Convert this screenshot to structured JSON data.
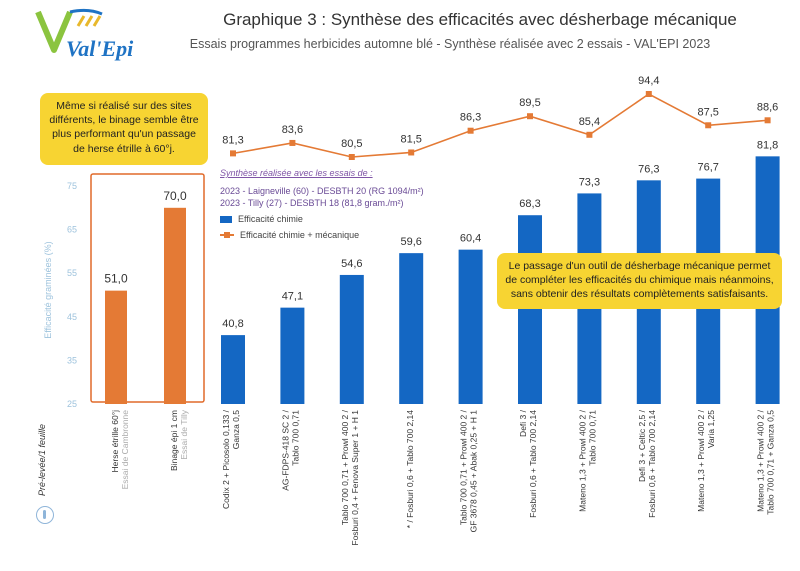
{
  "header": {
    "title": "Graphique 3 : Synthèse des efficacités avec désherbage mécanique",
    "subtitle": "Essais programmes herbicides automne blé - Synthèse réalisée avec 2 essais - VAL'EPI 2023",
    "logo_text": "Val'Epi"
  },
  "notes": {
    "left": "Même si réalisé sur des sites différents, le binage semble être plus performant qu'un passage de herse étrille à 60°j.",
    "right": "Le passage d'un outil de désherbage mécanique permet de compléter les efficacités du chimique mais néanmoins, sans obtenir des résultats complètements satisfaisants."
  },
  "legend": {
    "heading": "Synthèse réalisée avec les essais de :",
    "site1": "2023 - Laigneville (60) - DESBTH 20 (RG 1094/m²)",
    "site2": "2023 - Tilly (27) - DESBTH 18 (81,8 gram./m²)",
    "item_bar": "Efficacité chimie",
    "item_line": "Efficacité chimie + mécanique"
  },
  "footer": {
    "stage_label": "Pré-levée/1 feuille"
  },
  "colors": {
    "blue": "#1467c3",
    "orange": "#e47a35",
    "highlight_border": "#e06a2a",
    "note_bg": "#f7d432",
    "axis_text": "#9ec3dd"
  },
  "chart_data": {
    "type": "bar",
    "ylabel": "Efficacité graminées (%)",
    "ylim": [
      25,
      75
    ],
    "yticks": [
      25,
      35,
      45,
      55,
      65,
      75
    ],
    "mechanical_only": {
      "categories": [
        [
          "Herse étrille 60°j",
          "Essai de Cambronne"
        ],
        [
          "Binage épi 1 cm",
          "Essai de Tilly"
        ]
      ],
      "values": [
        51.0,
        70.0
      ],
      "value_labels": [
        "51,0",
        "70,0"
      ],
      "color": "#e47a35"
    },
    "programs": {
      "categories": [
        [
          "Codix 2 + Picosolo 0,133 /",
          "Ganza 0,5"
        ],
        [
          "AG-FDPS-418 SC 2 /",
          "Tablo 700 0,71"
        ],
        [
          "Tablo 700 0,71 + Prowl 400 2 /",
          "Fosburi 0,4 + Fenova Super 1 + H 1"
        ],
        [
          "* / Fosburi 0,6 + Tablo 700 2,14"
        ],
        [
          "Tablo 700 0,71 + Prowl 400 2 /",
          "GF 3678 0,45 + Abak 0,25 + H 1"
        ],
        [
          "Defi 3 /",
          "Fosburi 0,6 + Tablo 700 2,14"
        ],
        [
          "Mateno 1,3 + Prowl 400 2 /",
          "Tablo 700 0,71"
        ],
        [
          "Defi 3 + Celtic 2,5 /",
          "Fosburi 0,6 + Tablo 700 2,14"
        ],
        [
          "Mateno 1,3 + Prowl 400 2 /",
          "Varia 1,25"
        ],
        [
          "Mateno 1,3 + Prowl 400 2 /",
          "Tablo 700 0,71 + Ganza 0,5"
        ]
      ],
      "series": [
        {
          "name": "Efficacité chimie",
          "type": "bar",
          "values": [
            40.8,
            47.1,
            54.6,
            59.6,
            60.4,
            68.3,
            73.3,
            76.3,
            76.7,
            81.8
          ],
          "value_labels": [
            "40,8",
            "47,1",
            "54,6",
            "59,6",
            "60,4",
            "68,3",
            "73,3",
            "76,3",
            "76,7",
            "81,8"
          ],
          "color": "#1467c3"
        },
        {
          "name": "Efficacité chimie + mécanique",
          "type": "line",
          "values": [
            81.3,
            83.6,
            80.5,
            81.5,
            86.3,
            89.5,
            85.4,
            94.4,
            87.5,
            88.6
          ],
          "value_labels": [
            "81,3",
            "83,6",
            "80,5",
            "81,5",
            "86,3",
            "89,5",
            "85,4",
            "94,4",
            "87,5",
            "88,6"
          ],
          "color": "#e47a35"
        }
      ]
    }
  }
}
